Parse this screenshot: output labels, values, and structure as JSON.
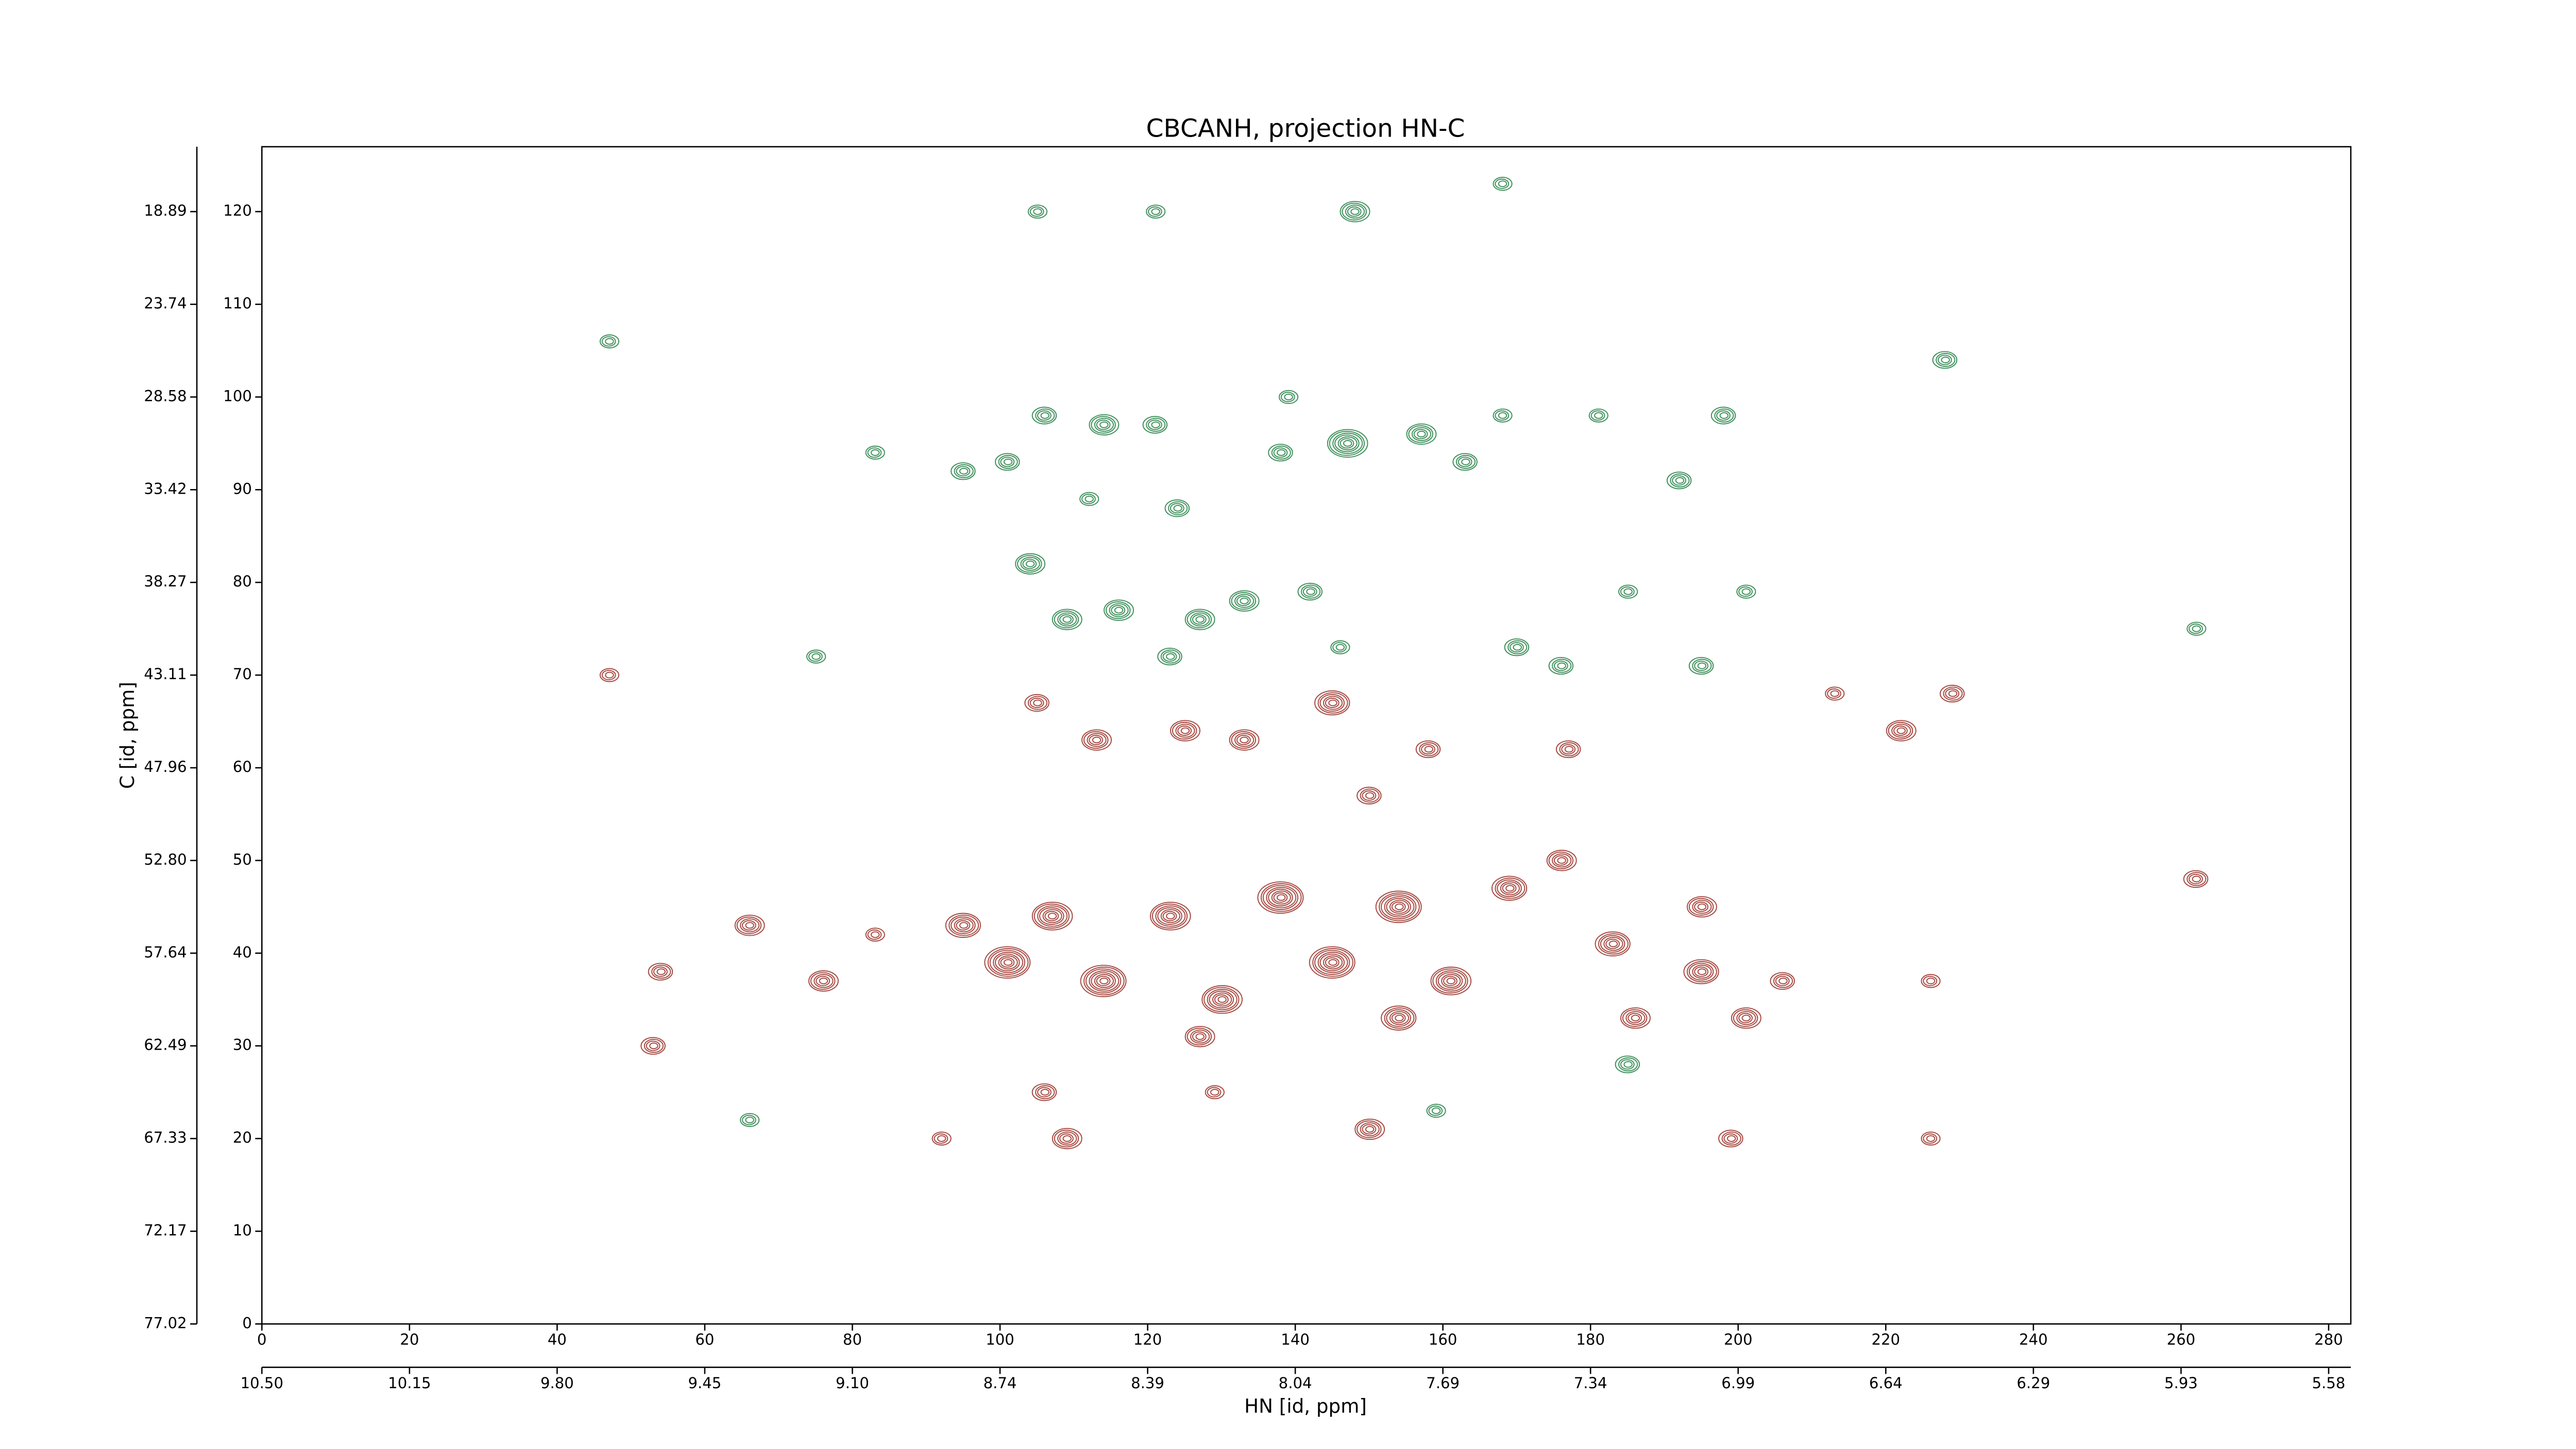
{
  "chart_data": {
    "type": "contour",
    "title": "CBCANH, projection HN-C",
    "xlabel": "HN [id, ppm]",
    "ylabel": "C [id, ppm]",
    "xlim": [
      0,
      283
    ],
    "ylim": [
      0,
      127
    ],
    "xticks": [
      0,
      20,
      40,
      60,
      80,
      100,
      120,
      140,
      160,
      180,
      200,
      220,
      240,
      260,
      280
    ],
    "yticks": [
      0,
      10,
      20,
      30,
      40,
      50,
      60,
      70,
      80,
      90,
      100,
      110,
      120
    ],
    "x2ticks": [
      {
        "value": 0,
        "label": "10.50"
      },
      {
        "value": 20,
        "label": "10.15"
      },
      {
        "value": 40,
        "label": "9.80"
      },
      {
        "value": 60,
        "label": "9.45"
      },
      {
        "value": 80,
        "label": "9.10"
      },
      {
        "value": 100,
        "label": "8.74"
      },
      {
        "value": 120,
        "label": "8.39"
      },
      {
        "value": 140,
        "label": "8.04"
      },
      {
        "value": 160,
        "label": "7.69"
      },
      {
        "value": 180,
        "label": "7.34"
      },
      {
        "value": 200,
        "label": "6.99"
      },
      {
        "value": 220,
        "label": "6.64"
      },
      {
        "value": 240,
        "label": "6.29"
      },
      {
        "value": 260,
        "label": "5.93"
      },
      {
        "value": 280,
        "label": "5.58"
      }
    ],
    "y2ticks": [
      {
        "value": 0,
        "label": "77.02"
      },
      {
        "value": 10,
        "label": "72.17"
      },
      {
        "value": 20,
        "label": "67.33"
      },
      {
        "value": 30,
        "label": "62.49"
      },
      {
        "value": 40,
        "label": "57.64"
      },
      {
        "value": 50,
        "label": "52.80"
      },
      {
        "value": 60,
        "label": "47.96"
      },
      {
        "value": 70,
        "label": "43.11"
      },
      {
        "value": 80,
        "label": "38.27"
      },
      {
        "value": 90,
        "label": "33.42"
      },
      {
        "value": 100,
        "label": "28.58"
      },
      {
        "value": 110,
        "label": "23.74"
      },
      {
        "value": 120,
        "label": "18.89"
      }
    ],
    "series": [
      {
        "color": "#a5473f",
        "x": [
          47,
          66,
          54,
          53,
          76,
          83,
          95,
          101,
          107,
          114,
          123,
          130,
          138,
          145,
          154,
          161,
          169,
          176,
          183,
          195,
          195,
          206,
          186,
          201,
          154,
          127,
          105,
          113,
          125,
          133,
          145,
          150,
          158,
          177,
          222,
          229,
          213,
          106,
          109,
          129,
          150,
          199,
          226,
          92,
          262,
          226
        ],
        "values": [
          70,
          43,
          38,
          30,
          37,
          42,
          43,
          39,
          44,
          37,
          44,
          35,
          46,
          39,
          45,
          37,
          47,
          50,
          41,
          45,
          38,
          37,
          33,
          33,
          33,
          31,
          67,
          63,
          64,
          63,
          67,
          57,
          62,
          62,
          64,
          68,
          68,
          25,
          20,
          25,
          21,
          20,
          20,
          20,
          48,
          37
        ],
        "levels": [
          3,
          5,
          4,
          4,
          5,
          3,
          6,
          8,
          7,
          8,
          7,
          7,
          8,
          8,
          8,
          7,
          6,
          5,
          6,
          5,
          6,
          4,
          5,
          5,
          6,
          5,
          4,
          5,
          5,
          5,
          6,
          4,
          4,
          4,
          5,
          4,
          3,
          4,
          5,
          3,
          5,
          4,
          3,
          3,
          4,
          3
        ]
      },
      {
        "color": "#3d8f5a",
        "x": [
          47,
          75,
          66,
          83,
          95,
          101,
          106,
          114,
          121,
          112,
          124,
          104,
          109,
          116,
          123,
          127,
          133,
          142,
          138,
          147,
          157,
          163,
          168,
          139,
          148,
          121,
          105,
          168,
          181,
          198,
          192,
          201,
          185,
          170,
          176,
          195,
          185,
          159,
          228,
          262,
          146
        ],
        "values": [
          106,
          72,
          22,
          94,
          92,
          93,
          98,
          97,
          97,
          89,
          88,
          82,
          76,
          77,
          72,
          76,
          78,
          79,
          94,
          95,
          96,
          93,
          98,
          100,
          120,
          120,
          120,
          123,
          98,
          98,
          91,
          79,
          79,
          73,
          71,
          71,
          28,
          23,
          104,
          75,
          73
        ],
        "levels": [
          3,
          3,
          3,
          3,
          4,
          4,
          4,
          5,
          4,
          3,
          4,
          5,
          5,
          5,
          4,
          5,
          5,
          4,
          4,
          7,
          5,
          4,
          3,
          3,
          5,
          3,
          3,
          3,
          3,
          4,
          4,
          3,
          3,
          4,
          4,
          4,
          4,
          3,
          4,
          3,
          3
        ]
      }
    ]
  }
}
